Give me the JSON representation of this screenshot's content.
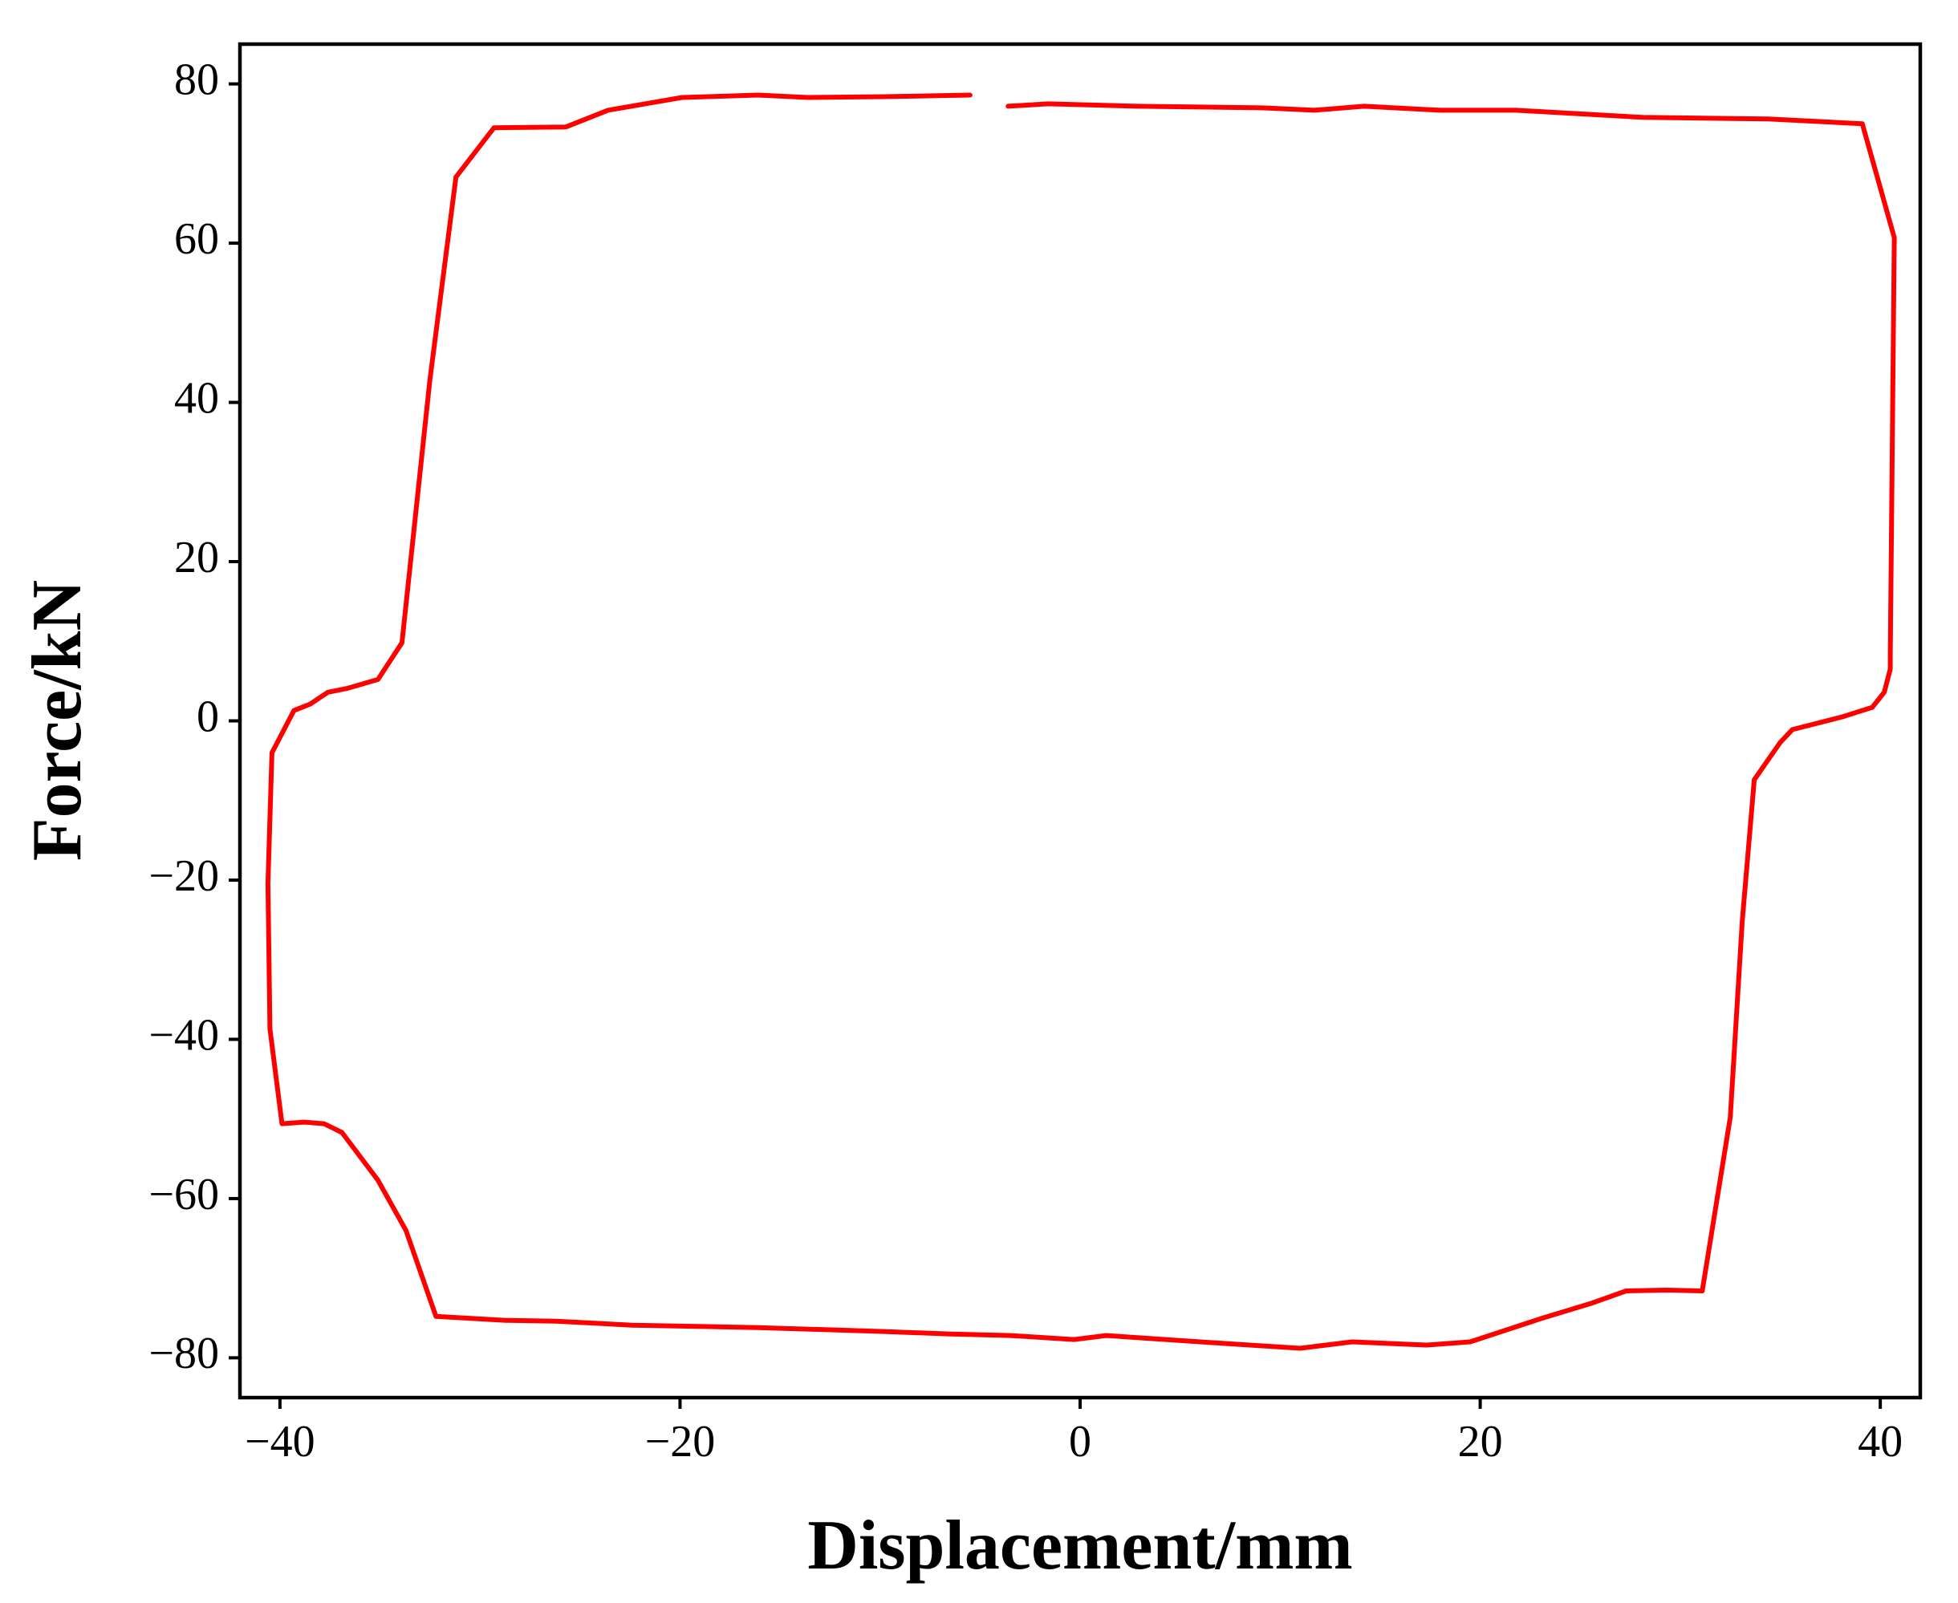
{
  "chart_data": {
    "type": "line",
    "x_label": "Displacement/mm",
    "y_label": "Force/kN",
    "xlim": [
      -42,
      42
    ],
    "ylim": [
      -85,
      85
    ],
    "xticks": [
      {
        "value": -40,
        "label": "−40"
      },
      {
        "value": -20,
        "label": "−20"
      },
      0,
      20,
      40
    ],
    "yticks": [
      {
        "value": -80,
        "label": "−80"
      },
      {
        "value": -60,
        "label": "−60"
      },
      {
        "value": -40,
        "label": "−40"
      },
      {
        "value": -20,
        "label": "−20"
      },
      0,
      20,
      40,
      60,
      80
    ],
    "grid": false,
    "series": [
      {
        "color": "#ff0000",
        "x": [
          -3.6,
          -1.6,
          2.8,
          9.1,
          11.7,
          14.2,
          18,
          21.8,
          28.1,
          34.4,
          39.1,
          40.7,
          40.5,
          40.5,
          40.2,
          39.6,
          38.1,
          35.6,
          35,
          33.7,
          33.1,
          32.5,
          31.1,
          29.3,
          27.3,
          25.5,
          23,
          19.5,
          17.3,
          13.6,
          11,
          6.6,
          1.3,
          -0.3,
          -3.5,
          -6.6,
          -9.8,
          -16.1,
          -22.4,
          -26.2,
          -28.7,
          -32.2,
          -33.7,
          -35.1,
          -36.9,
          -37.8,
          -38.8,
          -39.9,
          -40.5,
          -40.6,
          -40.4,
          -39.3,
          -38.5,
          -37.6,
          -36.6,
          -35.1,
          -33.9,
          -32.5,
          -31.2,
          -29.3,
          -25.7,
          -23.6,
          -19.9,
          -16.1,
          -13.6,
          -9.8,
          -5.5
        ],
        "values": [
          77.2,
          77.5,
          77.2,
          77.0,
          76.7,
          77.2,
          76.7,
          76.7,
          75.8,
          75.6,
          75.0,
          60.7,
          8.1,
          6.5,
          3.6,
          1.7,
          0.5,
          -1.1,
          -2.7,
          -7.4,
          -25.2,
          -49.8,
          -71.6,
          -71.5,
          -71.6,
          -73.2,
          -75.1,
          -78.0,
          -78.4,
          -78.0,
          -78.8,
          -78.1,
          -77.2,
          -77.7,
          -77.2,
          -77.0,
          -76.7,
          -76.2,
          -75.9,
          -75.4,
          -75.3,
          -74.8,
          -64,
          -57.7,
          -51.7,
          -50.6,
          -50.4,
          -50.6,
          -38.7,
          -20.4,
          -4.0,
          1.3,
          2.1,
          3.6,
          4.1,
          5.2,
          9.8,
          42.9,
          68.3,
          74.5,
          74.6,
          76.7,
          78.3,
          78.6,
          78.3,
          78.4,
          78.6
        ]
      }
    ]
  }
}
